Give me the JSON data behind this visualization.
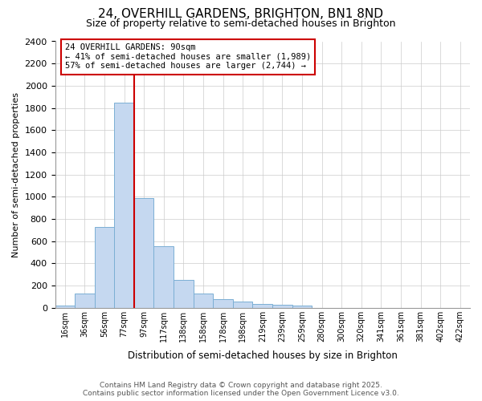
{
  "title": "24, OVERHILL GARDENS, BRIGHTON, BN1 8ND",
  "subtitle": "Size of property relative to semi-detached houses in Brighton",
  "xlabel": "Distribution of semi-detached houses by size in Brighton",
  "ylabel": "Number of semi-detached properties",
  "bar_labels": [
    "16sqm",
    "36sqm",
    "56sqm",
    "77sqm",
    "97sqm",
    "117sqm",
    "138sqm",
    "158sqm",
    "178sqm",
    "198sqm",
    "219sqm",
    "239sqm",
    "259sqm",
    "280sqm",
    "300sqm",
    "320sqm",
    "341sqm",
    "361sqm",
    "381sqm",
    "402sqm",
    "422sqm"
  ],
  "bar_values": [
    20,
    130,
    730,
    1845,
    985,
    555,
    250,
    130,
    75,
    55,
    35,
    25,
    20,
    0,
    0,
    0,
    0,
    0,
    0,
    0,
    0
  ],
  "bar_color": "#c5d8f0",
  "bar_edgecolor": "#7bafd4",
  "property_line_x": 4,
  "pct_smaller": 41,
  "pct_larger": 57,
  "n_smaller": 1989,
  "n_larger": 2744,
  "ylim": [
    0,
    2400
  ],
  "yticks": [
    0,
    200,
    400,
    600,
    800,
    1000,
    1200,
    1400,
    1600,
    1800,
    2000,
    2200,
    2400
  ],
  "annotation_box_color": "#cc0000",
  "grid_color": "#cccccc",
  "bg_color": "#ffffff",
  "footer": "Contains HM Land Registry data © Crown copyright and database right 2025.\nContains public sector information licensed under the Open Government Licence v3.0.",
  "num_bins": 21
}
